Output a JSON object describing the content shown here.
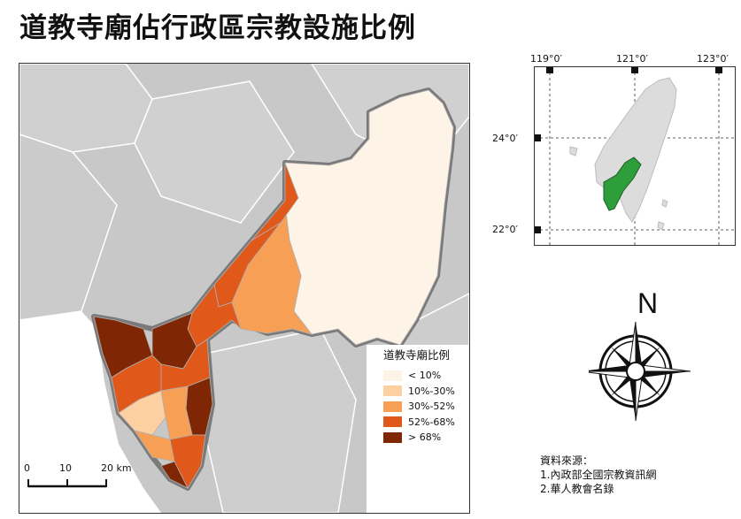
{
  "title": "道教寺廟佔行政區宗教設施比例",
  "legend": {
    "title": "道教寺廟比例",
    "items": [
      {
        "label": "< 10%",
        "color": "#fdf3e7"
      },
      {
        "label": "10%-30%",
        "color": "#fdd0a2"
      },
      {
        "label": "30%-52%",
        "color": "#f69f55"
      },
      {
        "label": "52%-68%",
        "color": "#e0581a"
      },
      {
        "label": "> 68%",
        "color": "#7f2704"
      }
    ]
  },
  "scalebar": {
    "ticks": [
      "0",
      "10",
      "20 km"
    ]
  },
  "inset": {
    "lon_labels": [
      "119°0′",
      "121°0′",
      "123°0′"
    ],
    "lat_labels": [
      "24°0′",
      "22°0′"
    ],
    "highlight_color": "#2e9e3a"
  },
  "north_arrow": {
    "label": "N"
  },
  "sources": {
    "heading": "資料來源：",
    "items": [
      "1.內政部全國宗教資訊網",
      "2.華人教會名錄"
    ]
  }
}
